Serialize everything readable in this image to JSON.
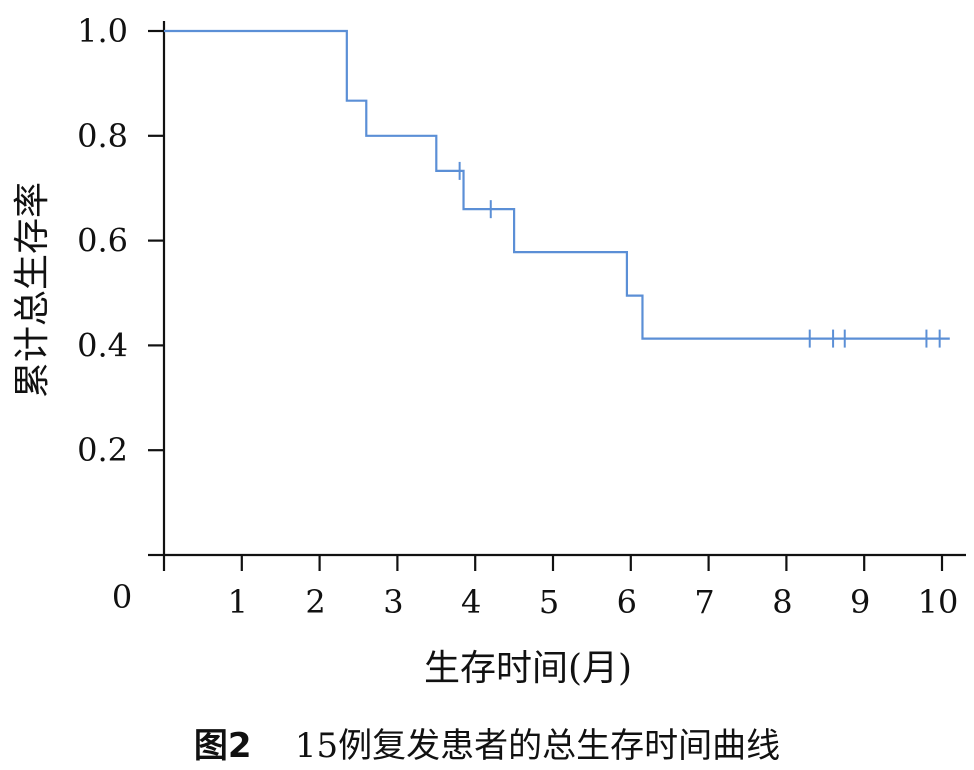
{
  "chart_data": {
    "type": "line",
    "subtype": "kaplan-meier",
    "xlabel": "生存时间(月)",
    "ylabel": "累计总生存率",
    "x_ticks": [
      "1",
      "2",
      "3",
      "4",
      "5",
      "6",
      "7",
      "8",
      "9",
      "10"
    ],
    "y_ticks": [
      "0.2",
      "0.4",
      "0.6",
      "0.8",
      "1.0"
    ],
    "origin_label": "0",
    "xlim": [
      0,
      10
    ],
    "ylim": [
      0,
      1.0
    ],
    "grid": false,
    "line_color": "#5b8fd6",
    "steps": [
      {
        "x": 0,
        "y": 1.0
      },
      {
        "x": 2.35,
        "y": 0.867
      },
      {
        "x": 2.6,
        "y": 0.8
      },
      {
        "x": 3.5,
        "y": 0.733
      },
      {
        "x": 3.85,
        "y": 0.66
      },
      {
        "x": 4.5,
        "y": 0.578
      },
      {
        "x": 5.95,
        "y": 0.495
      },
      {
        "x": 6.15,
        "y": 0.413
      }
    ],
    "x_end": 10.1,
    "censored": [
      {
        "x": 3.8,
        "y": 0.733
      },
      {
        "x": 4.2,
        "y": 0.66
      },
      {
        "x": 8.3,
        "y": 0.413
      },
      {
        "x": 8.6,
        "y": 0.413
      },
      {
        "x": 8.75,
        "y": 0.413
      },
      {
        "x": 9.8,
        "y": 0.413
      },
      {
        "x": 9.97,
        "y": 0.413
      }
    ]
  },
  "caption": {
    "figure_number": "图2",
    "text": "15例复发患者的总生存时间曲线"
  }
}
